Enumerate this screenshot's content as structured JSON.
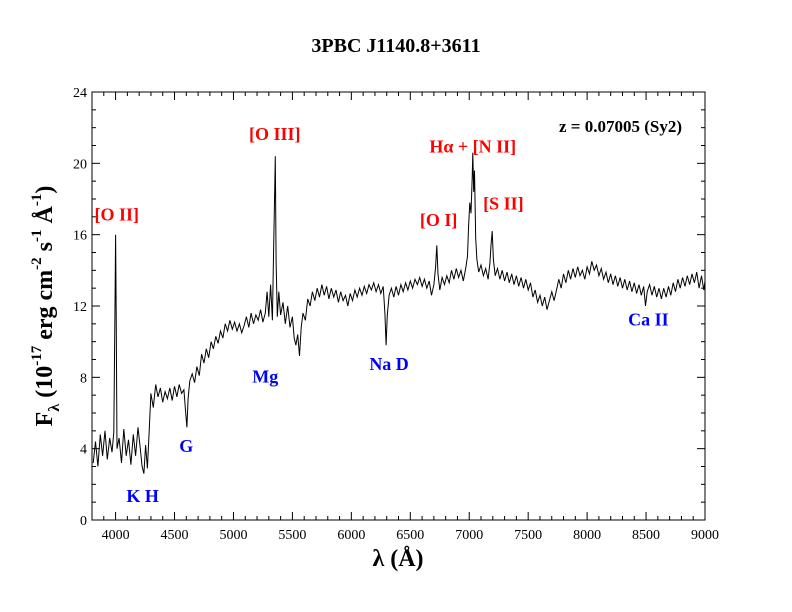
{
  "chart_data": {
    "type": "line",
    "title": "3PBC J1140.8+3611",
    "xlabel": "λ (Å)",
    "ylabel_parts": {
      "F": "F",
      "sub": "λ",
      "open": "(10",
      "exp17": "-17",
      "erg": "erg cm",
      "exp2": "-2",
      "s": "s",
      "exp1": "-1",
      "A": "Å",
      "expA": "-1",
      "close": ")"
    },
    "xlim": [
      3800,
      9000
    ],
    "ylim": [
      0,
      24
    ],
    "xticks": [
      4000,
      4500,
      5000,
      5500,
      6000,
      6500,
      7000,
      7500,
      8000,
      8500,
      9000
    ],
    "yticks": [
      0,
      4,
      8,
      12,
      16,
      20,
      24
    ],
    "x_minor_step": 100,
    "y_minor_step": 1,
    "redshift_label": "z = 0.07005 (Sy2)",
    "emission_color": "#ff0000",
    "absorption_color": "#0000ff",
    "annotations": [
      {
        "id": "o2",
        "text": "[O II]",
        "kind": "emission",
        "x": 4010,
        "y": 16.8
      },
      {
        "id": "kh",
        "text": "K H",
        "kind": "absorption",
        "x": 4230,
        "y": 1.0
      },
      {
        "id": "g",
        "text": "G",
        "kind": "absorption",
        "x": 4600,
        "y": 3.8
      },
      {
        "id": "o3",
        "text": "[O III]",
        "kind": "emission",
        "x": 5350,
        "y": 21.3
      },
      {
        "id": "mg",
        "text": "Mg",
        "kind": "absorption",
        "x": 5270,
        "y": 7.7
      },
      {
        "id": "nad",
        "text": "Na D",
        "kind": "absorption",
        "x": 6320,
        "y": 8.4
      },
      {
        "id": "o1",
        "text": "[O I]",
        "kind": "emission",
        "x": 6740,
        "y": 16.5
      },
      {
        "id": "ha",
        "text": "Hα + [N II]",
        "kind": "emission",
        "x": 7030,
        "y": 20.6
      },
      {
        "id": "s2",
        "text": "[S II]",
        "kind": "emission",
        "x": 7290,
        "y": 17.4
      },
      {
        "id": "ca2",
        "text": "Ca II",
        "kind": "absorption",
        "x": 8520,
        "y": 10.9
      }
    ],
    "series": [
      {
        "color": "#000000",
        "points": [
          [
            3810,
            3.2
          ],
          [
            3830,
            4.4
          ],
          [
            3850,
            3.0
          ],
          [
            3870,
            4.8
          ],
          [
            3890,
            3.6
          ],
          [
            3910,
            5.0
          ],
          [
            3930,
            3.4
          ],
          [
            3950,
            4.6
          ],
          [
            3970,
            3.8
          ],
          [
            3985,
            4.9
          ],
          [
            3995,
            12.0
          ],
          [
            4000,
            16.0
          ],
          [
            4005,
            11.5
          ],
          [
            4012,
            4.0
          ],
          [
            4030,
            4.6
          ],
          [
            4050,
            3.2
          ],
          [
            4070,
            5.1
          ],
          [
            4090,
            3.6
          ],
          [
            4110,
            4.5
          ],
          [
            4130,
            3.1
          ],
          [
            4150,
            4.8
          ],
          [
            4170,
            3.6
          ],
          [
            4190,
            5.2
          ],
          [
            4210,
            4.0
          ],
          [
            4225,
            3.0
          ],
          [
            4240,
            2.6
          ],
          [
            4255,
            4.2
          ],
          [
            4270,
            2.9
          ],
          [
            4285,
            5.0
          ],
          [
            4300,
            7.1
          ],
          [
            4320,
            6.3
          ],
          [
            4340,
            7.6
          ],
          [
            4360,
            6.9
          ],
          [
            4380,
            7.4
          ],
          [
            4400,
            6.6
          ],
          [
            4420,
            7.2
          ],
          [
            4440,
            6.8
          ],
          [
            4460,
            7.4
          ],
          [
            4480,
            6.7
          ],
          [
            4500,
            7.5
          ],
          [
            4520,
            6.9
          ],
          [
            4540,
            7.6
          ],
          [
            4560,
            7.1
          ],
          [
            4580,
            7.3
          ],
          [
            4595,
            6.0
          ],
          [
            4605,
            5.2
          ],
          [
            4615,
            6.8
          ],
          [
            4630,
            7.8
          ],
          [
            4650,
            8.2
          ],
          [
            4670,
            7.7
          ],
          [
            4690,
            8.6
          ],
          [
            4710,
            8.1
          ],
          [
            4730,
            9.3
          ],
          [
            4750,
            8.8
          ],
          [
            4770,
            9.6
          ],
          [
            4790,
            9.1
          ],
          [
            4810,
            10.0
          ],
          [
            4830,
            9.6
          ],
          [
            4850,
            10.3
          ],
          [
            4870,
            9.9
          ],
          [
            4890,
            10.6
          ],
          [
            4910,
            10.2
          ],
          [
            4930,
            11.0
          ],
          [
            4950,
            10.6
          ],
          [
            4970,
            11.2
          ],
          [
            4990,
            10.7
          ],
          [
            5010,
            11.1
          ],
          [
            5030,
            10.6
          ],
          [
            5050,
            11.0
          ],
          [
            5070,
            10.5
          ],
          [
            5090,
            10.9
          ],
          [
            5110,
            11.4
          ],
          [
            5130,
            10.8
          ],
          [
            5150,
            11.6
          ],
          [
            5170,
            11.0
          ],
          [
            5190,
            11.5
          ],
          [
            5210,
            11.2
          ],
          [
            5230,
            11.8
          ],
          [
            5250,
            11.1
          ],
          [
            5270,
            11.6
          ],
          [
            5285,
            12.8
          ],
          [
            5300,
            11.4
          ],
          [
            5315,
            13.2
          ],
          [
            5330,
            11.2
          ],
          [
            5340,
            14.8
          ],
          [
            5350,
            18.5
          ],
          [
            5355,
            20.4
          ],
          [
            5362,
            14.5
          ],
          [
            5372,
            11.4
          ],
          [
            5385,
            12.8
          ],
          [
            5400,
            11.5
          ],
          [
            5420,
            12.2
          ],
          [
            5440,
            11.0
          ],
          [
            5460,
            12.0
          ],
          [
            5480,
            10.8
          ],
          [
            5500,
            11.4
          ],
          [
            5515,
            10.2
          ],
          [
            5530,
            9.8
          ],
          [
            5545,
            10.4
          ],
          [
            5560,
            9.2
          ],
          [
            5575,
            10.8
          ],
          [
            5590,
            11.6
          ],
          [
            5610,
            11.2
          ],
          [
            5630,
            12.4
          ],
          [
            5650,
            12.0
          ],
          [
            5670,
            12.8
          ],
          [
            5690,
            12.3
          ],
          [
            5710,
            13.0
          ],
          [
            5730,
            12.5
          ],
          [
            5750,
            13.2
          ],
          [
            5770,
            12.6
          ],
          [
            5790,
            13.1
          ],
          [
            5810,
            12.4
          ],
          [
            5830,
            13.0
          ],
          [
            5850,
            12.5
          ],
          [
            5870,
            12.9
          ],
          [
            5890,
            12.2
          ],
          [
            5910,
            12.8
          ],
          [
            5930,
            12.3
          ],
          [
            5950,
            12.6
          ],
          [
            5970,
            12.0
          ],
          [
            5990,
            12.7
          ],
          [
            6010,
            12.3
          ],
          [
            6030,
            12.9
          ],
          [
            6050,
            12.5
          ],
          [
            6070,
            13.0
          ],
          [
            6090,
            12.6
          ],
          [
            6110,
            13.1
          ],
          [
            6130,
            12.7
          ],
          [
            6150,
            13.2
          ],
          [
            6170,
            12.9
          ],
          [
            6190,
            13.3
          ],
          [
            6210,
            12.8
          ],
          [
            6230,
            13.2
          ],
          [
            6250,
            12.7
          ],
          [
            6270,
            13.1
          ],
          [
            6285,
            11.6
          ],
          [
            6295,
            9.8
          ],
          [
            6305,
            11.5
          ],
          [
            6320,
            12.6
          ],
          [
            6340,
            13.0
          ],
          [
            6360,
            12.5
          ],
          [
            6380,
            13.1
          ],
          [
            6400,
            12.6
          ],
          [
            6420,
            13.2
          ],
          [
            6440,
            12.8
          ],
          [
            6460,
            13.3
          ],
          [
            6480,
            12.9
          ],
          [
            6500,
            13.4
          ],
          [
            6520,
            13.0
          ],
          [
            6540,
            13.5
          ],
          [
            6560,
            13.2
          ],
          [
            6580,
            13.6
          ],
          [
            6600,
            13.1
          ],
          [
            6620,
            13.5
          ],
          [
            6640,
            13.0
          ],
          [
            6660,
            13.4
          ],
          [
            6680,
            12.6
          ],
          [
            6700,
            13.2
          ],
          [
            6715,
            14.2
          ],
          [
            6725,
            15.4
          ],
          [
            6735,
            13.8
          ],
          [
            6750,
            12.9
          ],
          [
            6770,
            13.6
          ],
          [
            6790,
            13.2
          ],
          [
            6810,
            13.7
          ],
          [
            6830,
            13.3
          ],
          [
            6850,
            14.0
          ],
          [
            6870,
            13.5
          ],
          [
            6890,
            14.1
          ],
          [
            6910,
            13.6
          ],
          [
            6930,
            14.0
          ],
          [
            6950,
            13.4
          ],
          [
            6970,
            14.1
          ],
          [
            6985,
            14.8
          ],
          [
            6995,
            16.5
          ],
          [
            7005,
            17.8
          ],
          [
            7015,
            17.2
          ],
          [
            7025,
            19.2
          ],
          [
            7030,
            20.6
          ],
          [
            7038,
            18.4
          ],
          [
            7045,
            19.6
          ],
          [
            7055,
            15.8
          ],
          [
            7065,
            14.6
          ],
          [
            7080,
            13.9
          ],
          [
            7100,
            14.3
          ],
          [
            7120,
            13.7
          ],
          [
            7140,
            14.1
          ],
          [
            7160,
            13.5
          ],
          [
            7175,
            14.4
          ],
          [
            7185,
            15.4
          ],
          [
            7195,
            16.2
          ],
          [
            7205,
            14.6
          ],
          [
            7220,
            13.7
          ],
          [
            7240,
            14.1
          ],
          [
            7260,
            13.5
          ],
          [
            7280,
            14.0
          ],
          [
            7300,
            13.4
          ],
          [
            7320,
            13.9
          ],
          [
            7340,
            13.3
          ],
          [
            7360,
            13.8
          ],
          [
            7380,
            13.2
          ],
          [
            7400,
            13.7
          ],
          [
            7420,
            13.1
          ],
          [
            7440,
            13.6
          ],
          [
            7460,
            13.0
          ],
          [
            7480,
            13.5
          ],
          [
            7500,
            12.9
          ],
          [
            7520,
            13.3
          ],
          [
            7540,
            12.5
          ],
          [
            7560,
            12.9
          ],
          [
            7580,
            12.2
          ],
          [
            7600,
            12.6
          ],
          [
            7620,
            12.0
          ],
          [
            7640,
            12.5
          ],
          [
            7660,
            11.8
          ],
          [
            7680,
            12.3
          ],
          [
            7700,
            12.8
          ],
          [
            7720,
            12.3
          ],
          [
            7740,
            12.9
          ],
          [
            7760,
            13.5
          ],
          [
            7780,
            13.0
          ],
          [
            7800,
            13.8
          ],
          [
            7820,
            13.3
          ],
          [
            7840,
            14.0
          ],
          [
            7860,
            13.5
          ],
          [
            7880,
            14.1
          ],
          [
            7900,
            13.6
          ],
          [
            7920,
            14.2
          ],
          [
            7940,
            13.7
          ],
          [
            7960,
            14.0
          ],
          [
            7980,
            13.5
          ],
          [
            8000,
            14.2
          ],
          [
            8020,
            13.8
          ],
          [
            8040,
            14.5
          ],
          [
            8060,
            14.0
          ],
          [
            8080,
            14.3
          ],
          [
            8100,
            13.7
          ],
          [
            8120,
            14.1
          ],
          [
            8140,
            13.5
          ],
          [
            8160,
            13.9
          ],
          [
            8180,
            13.3
          ],
          [
            8200,
            13.8
          ],
          [
            8220,
            13.2
          ],
          [
            8240,
            13.7
          ],
          [
            8260,
            13.1
          ],
          [
            8280,
            13.6
          ],
          [
            8300,
            13.0
          ],
          [
            8320,
            13.5
          ],
          [
            8340,
            12.9
          ],
          [
            8360,
            13.4
          ],
          [
            8380,
            12.8
          ],
          [
            8400,
            13.3
          ],
          [
            8420,
            12.7
          ],
          [
            8440,
            13.2
          ],
          [
            8460,
            12.6
          ],
          [
            8480,
            13.1
          ],
          [
            8495,
            12.0
          ],
          [
            8510,
            12.8
          ],
          [
            8530,
            13.2
          ],
          [
            8550,
            12.6
          ],
          [
            8570,
            13.1
          ],
          [
            8590,
            12.5
          ],
          [
            8610,
            13.0
          ],
          [
            8630,
            12.4
          ],
          [
            8650,
            13.0
          ],
          [
            8670,
            12.5
          ],
          [
            8690,
            13.1
          ],
          [
            8710,
            12.6
          ],
          [
            8730,
            13.3
          ],
          [
            8750,
            12.8
          ],
          [
            8770,
            13.5
          ],
          [
            8790,
            13.0
          ],
          [
            8810,
            13.6
          ],
          [
            8830,
            13.1
          ],
          [
            8850,
            13.7
          ],
          [
            8870,
            13.2
          ],
          [
            8890,
            13.8
          ],
          [
            8910,
            13.3
          ],
          [
            8930,
            13.9
          ],
          [
            8950,
            13.0
          ],
          [
            8970,
            13.7
          ],
          [
            8990,
            12.9
          ],
          [
            9000,
            13.4
          ]
        ]
      }
    ]
  }
}
